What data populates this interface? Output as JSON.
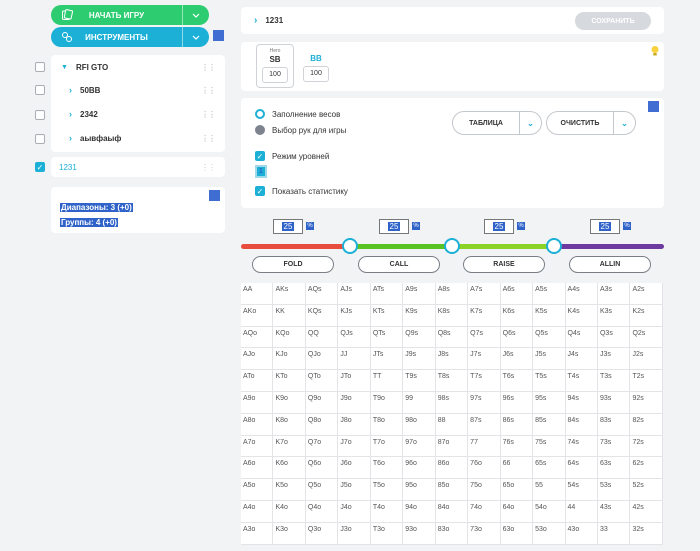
{
  "toolbar": {
    "start_game_label": "НАЧАТЬ ИГРУ",
    "tools_label": "ИНСТРУМЕНТЫ",
    "start_color": "#2ecc71",
    "tools_color": "#1cb0d6"
  },
  "tree": {
    "items": [
      {
        "label": "RFI GTO",
        "checked": false,
        "expanded": true
      },
      {
        "label": "50BB",
        "checked": false,
        "expanded": false
      },
      {
        "label": "2342",
        "checked": false,
        "expanded": false
      },
      {
        "label": "аывфаыф",
        "checked": false,
        "expanded": false
      }
    ],
    "selected": {
      "label": "1231",
      "checked": true
    }
  },
  "stats": {
    "ranges": "Диапазоны: 3 (+0)",
    "groups": "Группы: 4 (+0)"
  },
  "range_name": {
    "value": "1231",
    "save_label": "СОХРАНИТЬ"
  },
  "positions": [
    {
      "hero": "Hero",
      "name": "SB",
      "stack": "100",
      "active": true
    },
    {
      "hero": "",
      "name": "BB",
      "stack": "100",
      "active": false
    }
  ],
  "options": {
    "fill_weights": "Заполнение весов",
    "select_hands": "Выбор рук для игры",
    "level_mode": "Режим уровней",
    "level_value": "1",
    "show_stats": "Показать статистику",
    "table_label": "ТАБЛИЦА",
    "clear_label": "ОЧИСТИТЬ"
  },
  "slider": {
    "percents": [
      "25",
      "25",
      "25",
      "25"
    ],
    "pct_sign": "%",
    "colors": [
      "#e74c3c",
      "#58c322",
      "#8bd226",
      "#6d3aa0"
    ]
  },
  "actions": [
    {
      "label": "FOLD"
    },
    {
      "label": "CALL"
    },
    {
      "label": "RAISE"
    },
    {
      "label": "ALLIN"
    }
  ],
  "grid": {
    "rows": [
      [
        "AA",
        "AKs",
        "AQs",
        "AJs",
        "ATs",
        "A9s",
        "A8s",
        "A7s",
        "A6s",
        "A5s",
        "A4s",
        "A3s",
        "A2s"
      ],
      [
        "AKo",
        "KK",
        "KQs",
        "KJs",
        "KTs",
        "K9s",
        "K8s",
        "K7s",
        "K6s",
        "K5s",
        "K4s",
        "K3s",
        "K2s"
      ],
      [
        "AQo",
        "KQo",
        "QQ",
        "QJs",
        "QTs",
        "Q9s",
        "Q8s",
        "Q7s",
        "Q6s",
        "Q5s",
        "Q4s",
        "Q3s",
        "Q2s"
      ],
      [
        "AJo",
        "KJo",
        "QJo",
        "JJ",
        "JTs",
        "J9s",
        "J8s",
        "J7s",
        "J6s",
        "J5s",
        "J4s",
        "J3s",
        "J2s"
      ],
      [
        "ATo",
        "KTo",
        "QTo",
        "JTo",
        "TT",
        "T9s",
        "T8s",
        "T7s",
        "T6s",
        "T5s",
        "T4s",
        "T3s",
        "T2s"
      ],
      [
        "A9o",
        "K9o",
        "Q9o",
        "J9o",
        "T9o",
        "99",
        "98s",
        "97s",
        "96s",
        "95s",
        "94s",
        "93s",
        "92s"
      ],
      [
        "A8o",
        "K8o",
        "Q8o",
        "J8o",
        "T8o",
        "98o",
        "88",
        "87s",
        "86s",
        "85s",
        "84s",
        "83s",
        "82s"
      ],
      [
        "A7o",
        "K7o",
        "Q7o",
        "J7o",
        "T7o",
        "97o",
        "87o",
        "77",
        "76s",
        "75s",
        "74s",
        "73s",
        "72s"
      ],
      [
        "A6o",
        "K6o",
        "Q6o",
        "J6o",
        "T6o",
        "96o",
        "86o",
        "76o",
        "66",
        "65s",
        "64s",
        "63s",
        "62s"
      ],
      [
        "A5o",
        "K5o",
        "Q5o",
        "J5o",
        "T5o",
        "95o",
        "85o",
        "75o",
        "65o",
        "55",
        "54s",
        "53s",
        "52s"
      ],
      [
        "A4o",
        "K4o",
        "Q4o",
        "J4o",
        "T4o",
        "94o",
        "84o",
        "74o",
        "64o",
        "54o",
        "44",
        "43s",
        "42s"
      ],
      [
        "A3o",
        "K3o",
        "Q3o",
        "J3o",
        "T3o",
        "93o",
        "83o",
        "73o",
        "63o",
        "53o",
        "43o",
        "33",
        "32s"
      ]
    ]
  }
}
